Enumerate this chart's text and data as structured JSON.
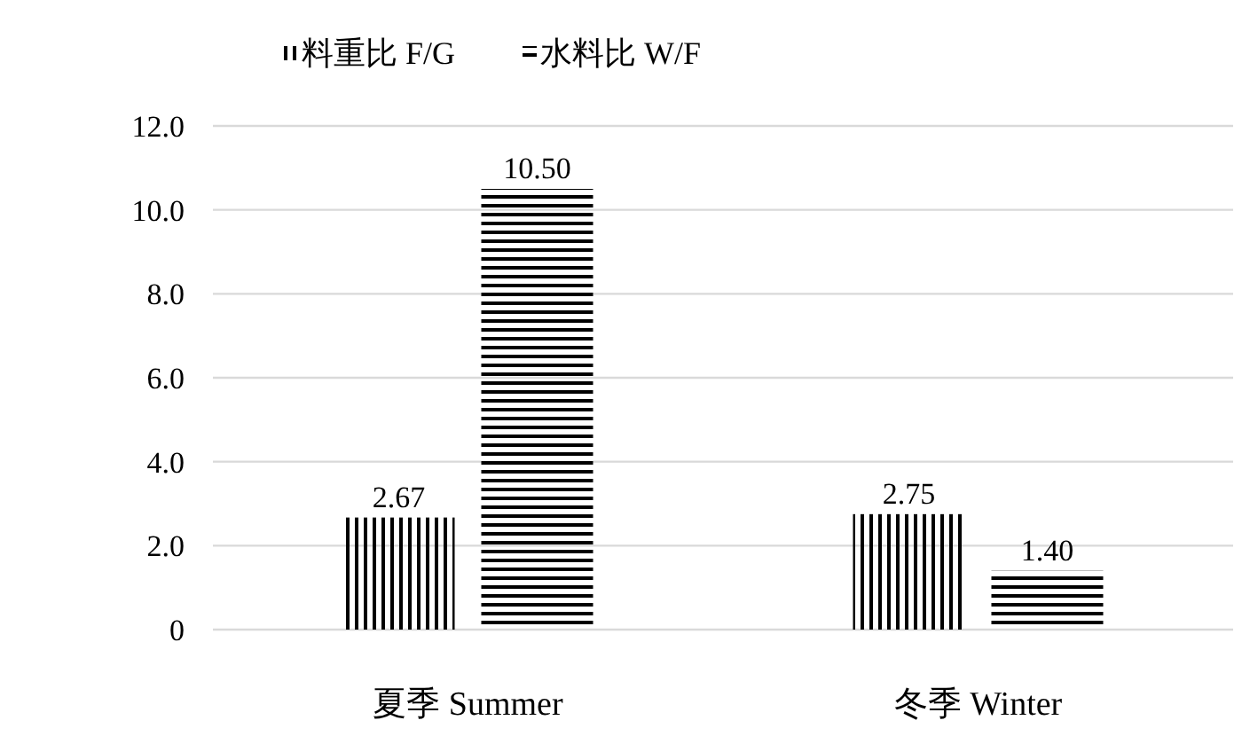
{
  "chart_data": {
    "type": "bar",
    "categories": [
      "夏季 Summer",
      "冬季 Winter"
    ],
    "series": [
      {
        "name": "料重比 F/G",
        "color": "#000000",
        "values": [
          2.67,
          2.75
        ],
        "value_labels": [
          "2.67",
          "2.75"
        ]
      },
      {
        "name": "水料比 W/F",
        "color": "#000000",
        "values": [
          10.5,
          1.4
        ],
        "value_labels": [
          "10.50",
          "1.40"
        ]
      }
    ],
    "ylim": [
      0,
      12
    ],
    "yticks": [
      0,
      {
        "value": 2,
        "label": "2.0"
      },
      {
        "value": 4,
        "label": "4.0"
      },
      {
        "value": 6,
        "label": "6.0"
      },
      {
        "value": 8,
        "label": "8.0"
      },
      {
        "value": 10,
        "label": "10.0"
      },
      {
        "value": 12,
        "label": "12.0"
      }
    ],
    "grid": "y",
    "legend": "top left"
  }
}
